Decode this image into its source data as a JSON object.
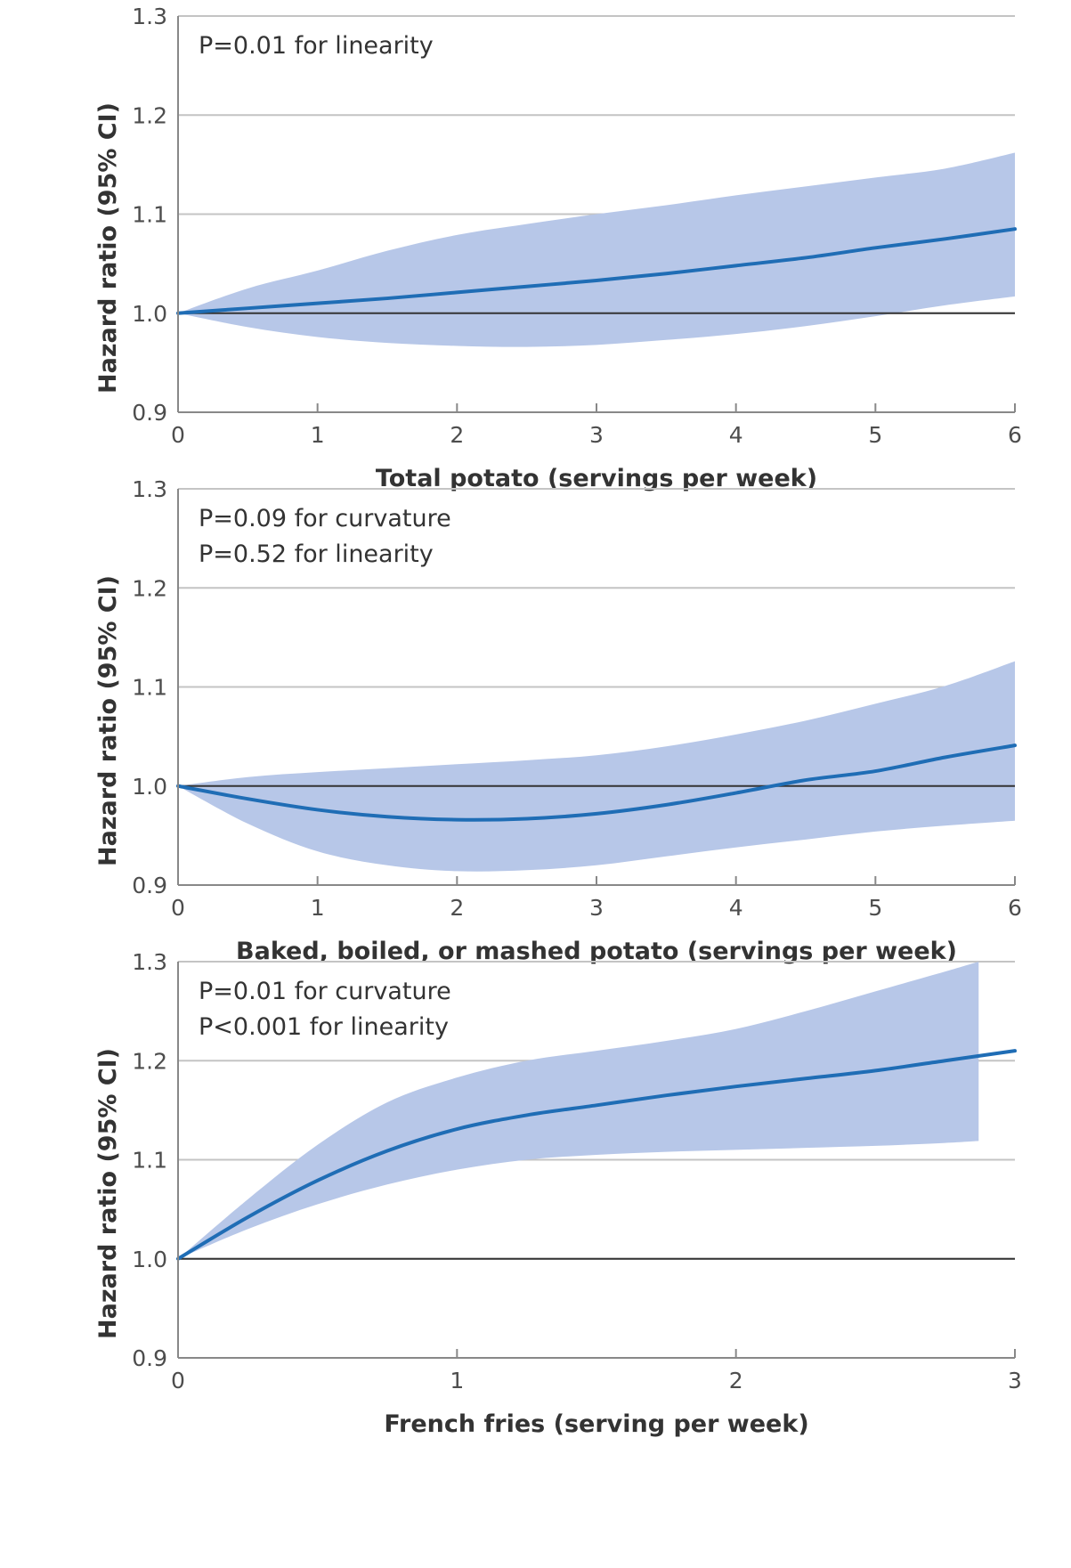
{
  "colors": {
    "band": "#b7c7e8",
    "line": "#1f6db5",
    "grid": "#c4c4c4",
    "reference": "#333333",
    "axis": "#888888",
    "text": "#333333"
  },
  "chart_data": [
    {
      "type": "line",
      "xlabel": "Total potato (servings per week)",
      "ylabel": "Hazard ratio (95% CI)",
      "xlim": [
        0,
        6
      ],
      "ylim": [
        0.9,
        1.3
      ],
      "xticks": [
        0,
        1,
        2,
        3,
        4,
        5,
        6
      ],
      "yticks": [
        0.9,
        1.0,
        1.1,
        1.2,
        1.3
      ],
      "annotations": [
        "P=0.01 for linearity"
      ],
      "reference_line": 1.0,
      "grid": true,
      "x": [
        0,
        0.5,
        1,
        1.5,
        2,
        2.5,
        3,
        3.5,
        4,
        4.5,
        5,
        5.5,
        6
      ],
      "hr": [
        1.0,
        1.005,
        1.01,
        1.015,
        1.021,
        1.027,
        1.033,
        1.04,
        1.048,
        1.056,
        1.066,
        1.075,
        1.085
      ],
      "lower": [
        1.0,
        0.986,
        0.976,
        0.97,
        0.967,
        0.966,
        0.968,
        0.973,
        0.979,
        0.987,
        0.997,
        1.008,
        1.017
      ],
      "upper": [
        1.0,
        1.025,
        1.043,
        1.063,
        1.079,
        1.09,
        1.1,
        1.109,
        1.119,
        1.128,
        1.137,
        1.146,
        1.162
      ]
    },
    {
      "type": "line",
      "xlabel": "Baked, boiled, or mashed potato (servings per week)",
      "ylabel": "Hazard ratio (95% CI)",
      "xlim": [
        0,
        6
      ],
      "ylim": [
        0.9,
        1.3
      ],
      "xticks": [
        0,
        1,
        2,
        3,
        4,
        5,
        6
      ],
      "yticks": [
        0.9,
        1.0,
        1.1,
        1.2,
        1.3
      ],
      "annotations": [
        "P=0.09 for curvature",
        "P=0.52 for linearity"
      ],
      "reference_line": 1.0,
      "grid": true,
      "x": [
        0,
        0.5,
        1,
        1.5,
        2,
        2.5,
        3,
        3.5,
        4,
        4.5,
        5,
        5.5,
        6
      ],
      "hr": [
        1.0,
        0.987,
        0.976,
        0.969,
        0.966,
        0.967,
        0.972,
        0.981,
        0.993,
        1.006,
        1.015,
        1.029,
        1.041
      ],
      "lower": [
        1.0,
        0.962,
        0.934,
        0.92,
        0.914,
        0.915,
        0.92,
        0.929,
        0.938,
        0.946,
        0.954,
        0.96,
        0.965
      ],
      "upper": [
        1.0,
        1.009,
        1.014,
        1.018,
        1.022,
        1.026,
        1.031,
        1.04,
        1.052,
        1.066,
        1.083,
        1.101,
        1.126
      ]
    },
    {
      "type": "line",
      "xlabel": "French fries (serving per week)",
      "ylabel": "Hazard ratio (95% CI)",
      "xlim": [
        0,
        3
      ],
      "ylim": [
        0.9,
        1.3
      ],
      "xticks": [
        0,
        1,
        2,
        3
      ],
      "yticks": [
        0.9,
        1.0,
        1.1,
        1.2,
        1.3
      ],
      "annotations": [
        "P=0.01 for curvature",
        "P<0.001 for linearity"
      ],
      "reference_line": 1.0,
      "grid": true,
      "x": [
        0,
        0.25,
        0.5,
        0.75,
        1,
        1.25,
        1.5,
        1.75,
        2,
        2.25,
        2.5,
        2.75,
        3
      ],
      "hr": [
        1.0,
        1.042,
        1.079,
        1.109,
        1.131,
        1.145,
        1.155,
        1.165,
        1.174,
        1.182,
        1.19,
        1.2,
        1.21
      ],
      "band_x": [
        0,
        0.25,
        0.5,
        0.75,
        1,
        1.25,
        1.5,
        1.75,
        2,
        2.25,
        2.5,
        2.75,
        2.87
      ],
      "lower": [
        1.0,
        1.03,
        1.055,
        1.075,
        1.09,
        1.1,
        1.105,
        1.108,
        1.11,
        1.112,
        1.114,
        1.117,
        1.119
      ],
      "upper": [
        1.0,
        1.06,
        1.115,
        1.158,
        1.183,
        1.2,
        1.21,
        1.22,
        1.232,
        1.25,
        1.27,
        1.29,
        1.3
      ]
    }
  ]
}
